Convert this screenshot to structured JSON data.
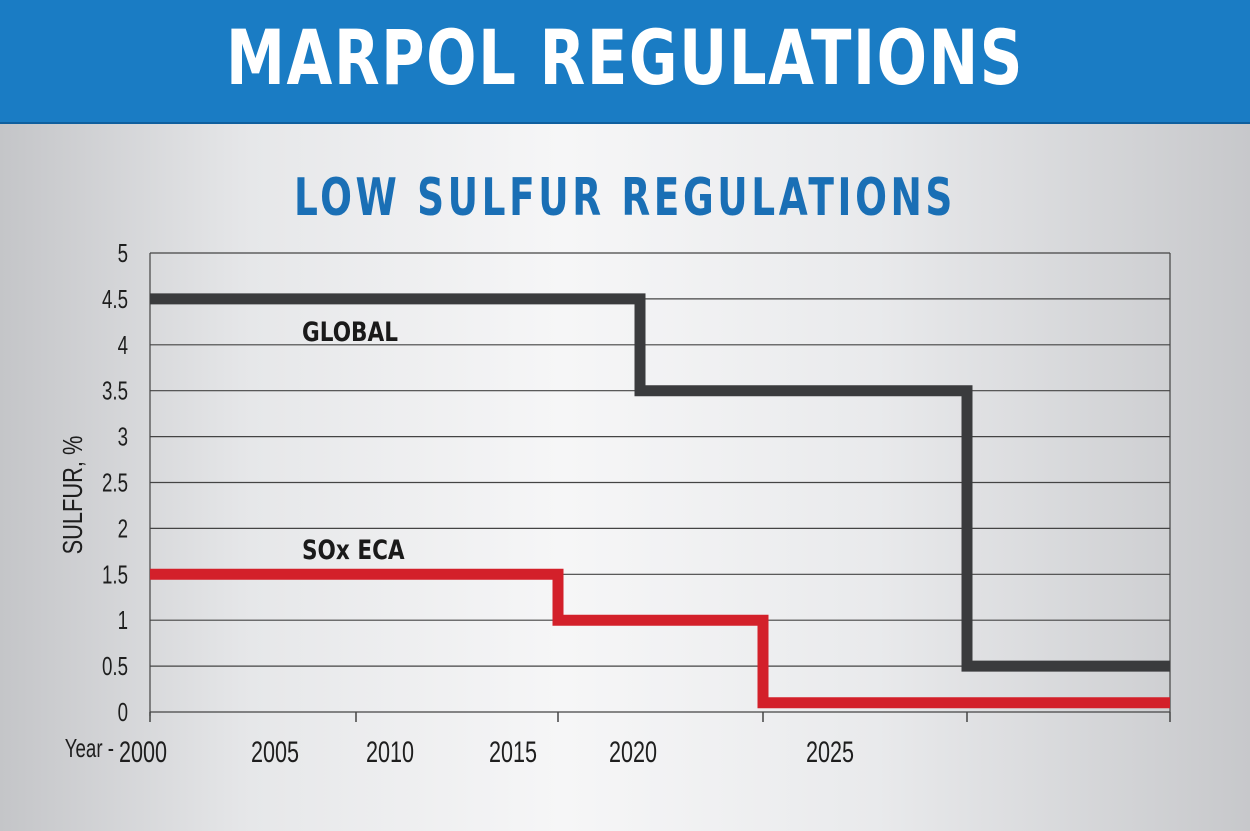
{
  "banner": {
    "title": "MARPOL REGULATIONS"
  },
  "colors": {
    "banner": "#1a7cc4",
    "subtitle": "#1a6fb5",
    "global": "#3a3b3d",
    "soxeca": "#d3202a"
  },
  "chart_data": {
    "type": "line",
    "step": true,
    "title": "LOW SULFUR REGULATIONS",
    "xlabel": "Year",
    "ylabel": "SULFUR, %",
    "ylim": [
      0,
      5
    ],
    "xlim": [
      2000,
      2025
    ],
    "x_ticks": [
      2000,
      2005,
      2010,
      2015,
      2020,
      2025
    ],
    "x_tick_labels": [
      "2000",
      "2005",
      "2010",
      "2015",
      "2020",
      "2025"
    ],
    "x_axis_prefix": "Year -",
    "y_ticks": [
      0,
      0.5,
      1,
      1.5,
      2,
      2.5,
      3,
      3.5,
      4,
      4.5,
      5
    ],
    "y_tick_labels": [
      "0",
      "0.5",
      "1",
      "1.5",
      "2",
      "2.5",
      "3",
      "3.5",
      "4",
      "4.5",
      "5"
    ],
    "grid": true,
    "series": [
      {
        "name": "GLOBAL",
        "x": [
          2000,
          2012,
          2012,
          2020,
          2020,
          2025
        ],
        "y": [
          4.5,
          4.5,
          3.5,
          3.5,
          0.5,
          0.5
        ]
      },
      {
        "name": "SOx ECA",
        "x": [
          2000,
          2010,
          2010,
          2015,
          2015,
          2025
        ],
        "y": [
          1.5,
          1.5,
          1.0,
          1.0,
          0.1,
          0.1
        ]
      }
    ]
  }
}
